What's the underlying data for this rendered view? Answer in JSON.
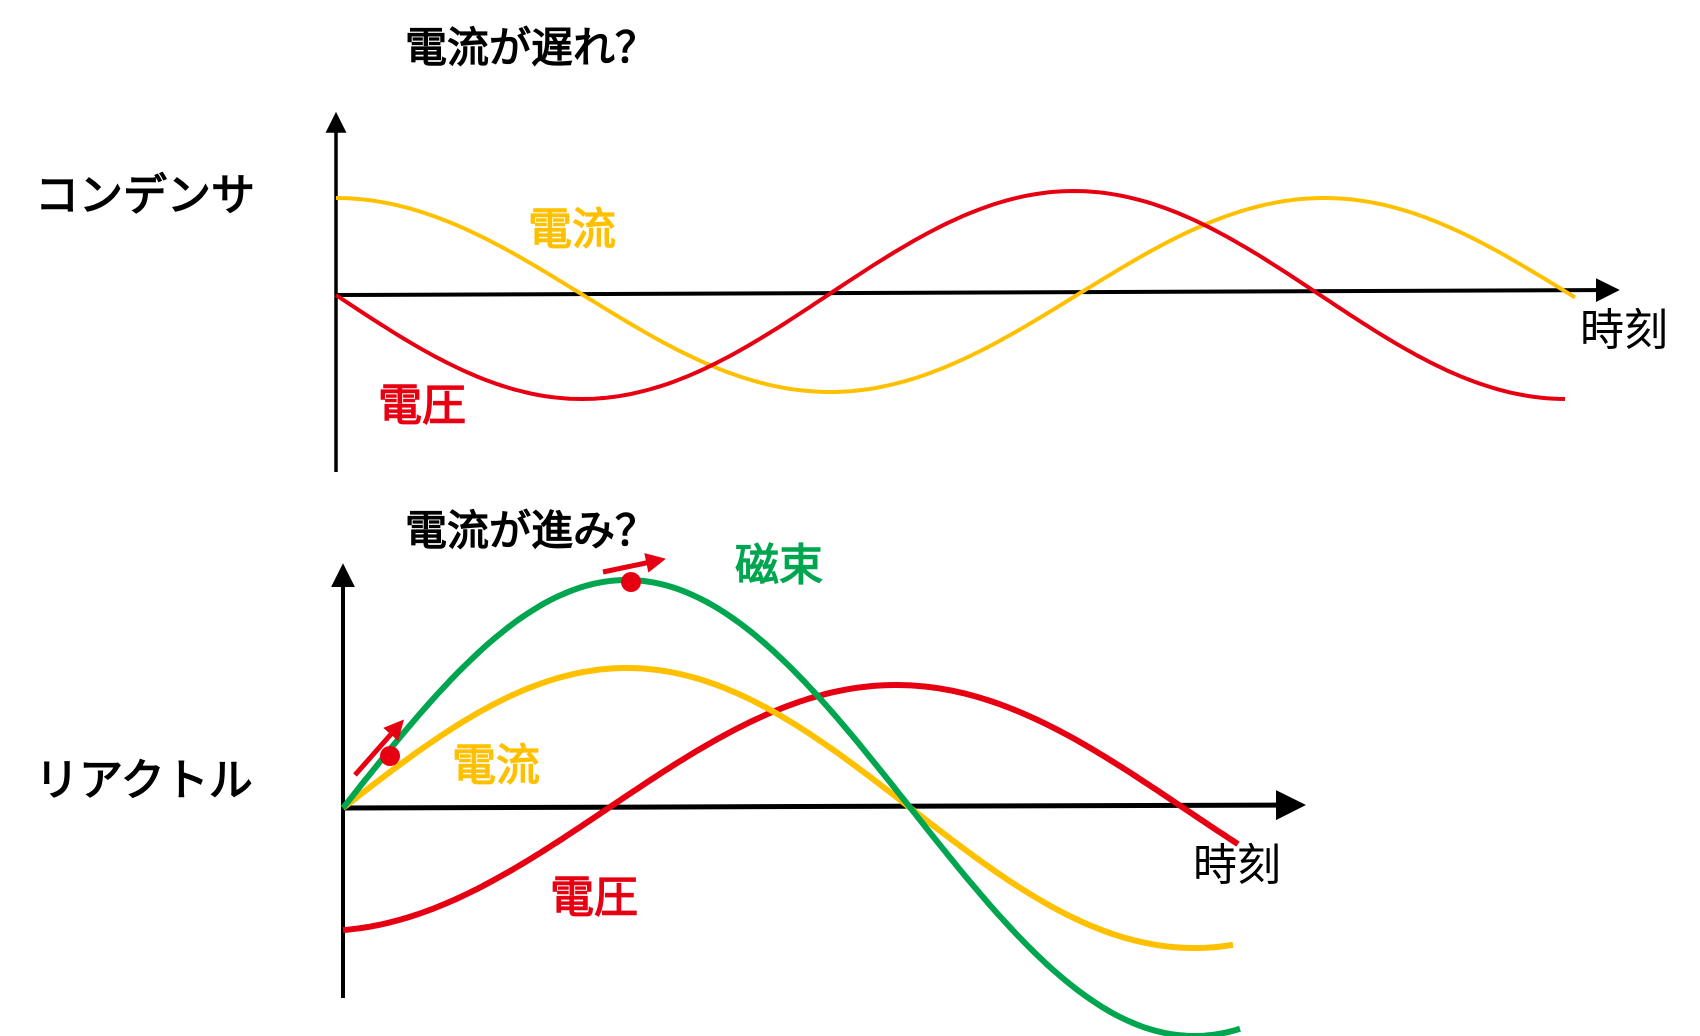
{
  "colors": {
    "voltage": "#e60012",
    "current": "#ffc000",
    "flux": "#00a64f",
    "axis": "#000000",
    "text": "#000000"
  },
  "capacitor_panel": {
    "title": "電流が遅れ？",
    "name": "コンデンサ",
    "time_label": "時刻",
    "current_label": "電流",
    "voltage_label": "電圧"
  },
  "reactor_panel": {
    "title": "電流が進み？",
    "name": "リアクトル",
    "time_label": "時刻",
    "current_label": "電流",
    "voltage_label": "電圧",
    "flux_label": "磁束"
  }
}
